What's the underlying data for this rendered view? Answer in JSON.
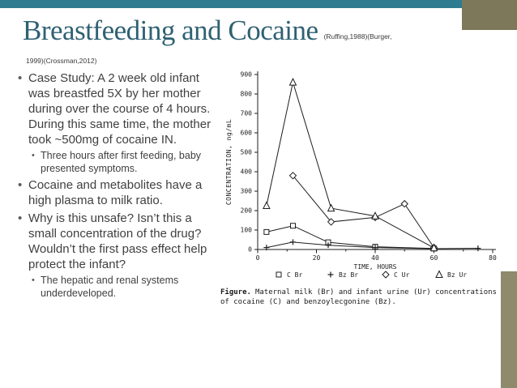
{
  "theme": {
    "teal_bar": "#2e7c90",
    "tan_corner": "#7d785a",
    "tan_strip": "#8e8a6b",
    "title_color": "#2f6173",
    "body_color": "#404040",
    "figure_ink": "#1c1c1c"
  },
  "slide": {
    "title": "Breastfeeding and Cocaine",
    "citation_inline": "(Ruffing,1988)(Burger,",
    "citation_wrap": "1999)(Crossman,2012)",
    "bullets": [
      {
        "level": 1,
        "text": "Case Study: A 2 week old infant was breastfed 5X by her mother during over the course of 4 hours. During this same time, the mother took ~500mg of cocaine IN."
      },
      {
        "level": 2,
        "text": "Three hours after first feeding, baby presented symptoms."
      },
      {
        "level": 1,
        "text": "Cocaine and metabolites have a high plasma to milk ratio."
      },
      {
        "level": 1,
        "text": "Why is this unsafe? Isn’t this a small concentration of the drug? Wouldn’t the first pass effect help protect the infant?"
      },
      {
        "level": 2,
        "text": "The hepatic and renal systems underdeveloped."
      }
    ]
  },
  "figure": {
    "caption_label": "Figure.",
    "caption_text": "Maternal milk (Br) and infant urine (Ur) concentrations of cocaine (C) and benzoylecgonine (Bz)."
  },
  "chart_data": {
    "type": "line",
    "title": "",
    "xlabel": "TIME, HOURS",
    "ylabel": "CONCENTRATION, ng/mL",
    "xlim": [
      0,
      80
    ],
    "ylim": [
      0,
      900
    ],
    "x_ticks": [
      0,
      20,
      40,
      60,
      80
    ],
    "x_minor_ticks": [
      10,
      30,
      50,
      70
    ],
    "y_ticks": [
      0,
      100,
      200,
      300,
      400,
      500,
      600,
      700,
      800,
      900
    ],
    "grid": false,
    "legend_position": "bottom",
    "series": [
      {
        "name": "C Br",
        "marker": "square",
        "points": [
          [
            3,
            90
          ],
          [
            12,
            122
          ],
          [
            24,
            37
          ],
          [
            40,
            14
          ],
          [
            60,
            5
          ]
        ]
      },
      {
        "name": "Bz Br",
        "marker": "plus",
        "points": [
          [
            3,
            10
          ],
          [
            12,
            38
          ],
          [
            24,
            22
          ],
          [
            40,
            10
          ],
          [
            60,
            4
          ],
          [
            75,
            6
          ]
        ]
      },
      {
        "name": "C Ur",
        "marker": "diamond",
        "points": [
          [
            12,
            380
          ],
          [
            25,
            142
          ],
          [
            40,
            165
          ],
          [
            50,
            235
          ],
          [
            60,
            10
          ]
        ]
      },
      {
        "name": "Bz Ur",
        "marker": "triangle",
        "points": [
          [
            3,
            225
          ],
          [
            12,
            860
          ],
          [
            25,
            212
          ],
          [
            40,
            172
          ],
          [
            60,
            8
          ]
        ]
      }
    ]
  }
}
